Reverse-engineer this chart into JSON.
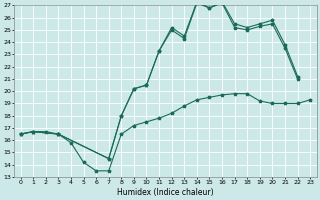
{
  "xlabel": "Humidex (Indice chaleur)",
  "bg_color": "#cce8e8",
  "grid_color": "#ffffff",
  "line_color": "#1a6b5a",
  "xlim": [
    -0.5,
    23.5
  ],
  "ylim": [
    13,
    27
  ],
  "xticks": [
    0,
    1,
    2,
    3,
    4,
    5,
    6,
    7,
    8,
    9,
    10,
    11,
    12,
    13,
    14,
    15,
    16,
    17,
    18,
    19,
    20,
    21,
    22,
    23
  ],
  "yticks": [
    13,
    14,
    15,
    16,
    17,
    18,
    19,
    20,
    21,
    22,
    23,
    24,
    25,
    26,
    27
  ],
  "line1_x": [
    0,
    1,
    2,
    3,
    4,
    5,
    6,
    7,
    8,
    9,
    10,
    11,
    12,
    13,
    14,
    15,
    16,
    17,
    18,
    19,
    20,
    21,
    22,
    23
  ],
  "line1_y": [
    16.5,
    16.7,
    16.7,
    16.5,
    15.8,
    14.2,
    13.5,
    13.5,
    16.5,
    17.2,
    17.5,
    17.8,
    18.2,
    18.8,
    19.3,
    19.5,
    19.7,
    19.8,
    19.8,
    19.2,
    19.0,
    19.0,
    19.0,
    19.3
  ],
  "line2_x": [
    0,
    1,
    3,
    7,
    8,
    9,
    10,
    11,
    12,
    13,
    14,
    15,
    16,
    17,
    18,
    19,
    20,
    21,
    22
  ],
  "line2_y": [
    16.5,
    16.7,
    16.5,
    14.5,
    18.0,
    20.2,
    20.5,
    23.3,
    25.2,
    24.5,
    27.3,
    26.8,
    27.3,
    25.5,
    25.2,
    25.5,
    25.8,
    23.8,
    21.2
  ],
  "line3_x": [
    0,
    1,
    3,
    7,
    8,
    9,
    10,
    11,
    12,
    13,
    14,
    15,
    16,
    17,
    18,
    19,
    20,
    21,
    22
  ],
  "line3_y": [
    16.5,
    16.7,
    16.5,
    14.5,
    18.0,
    20.2,
    20.5,
    23.3,
    25.0,
    24.3,
    27.2,
    26.8,
    27.2,
    25.2,
    25.0,
    25.3,
    25.5,
    23.5,
    21.0
  ]
}
